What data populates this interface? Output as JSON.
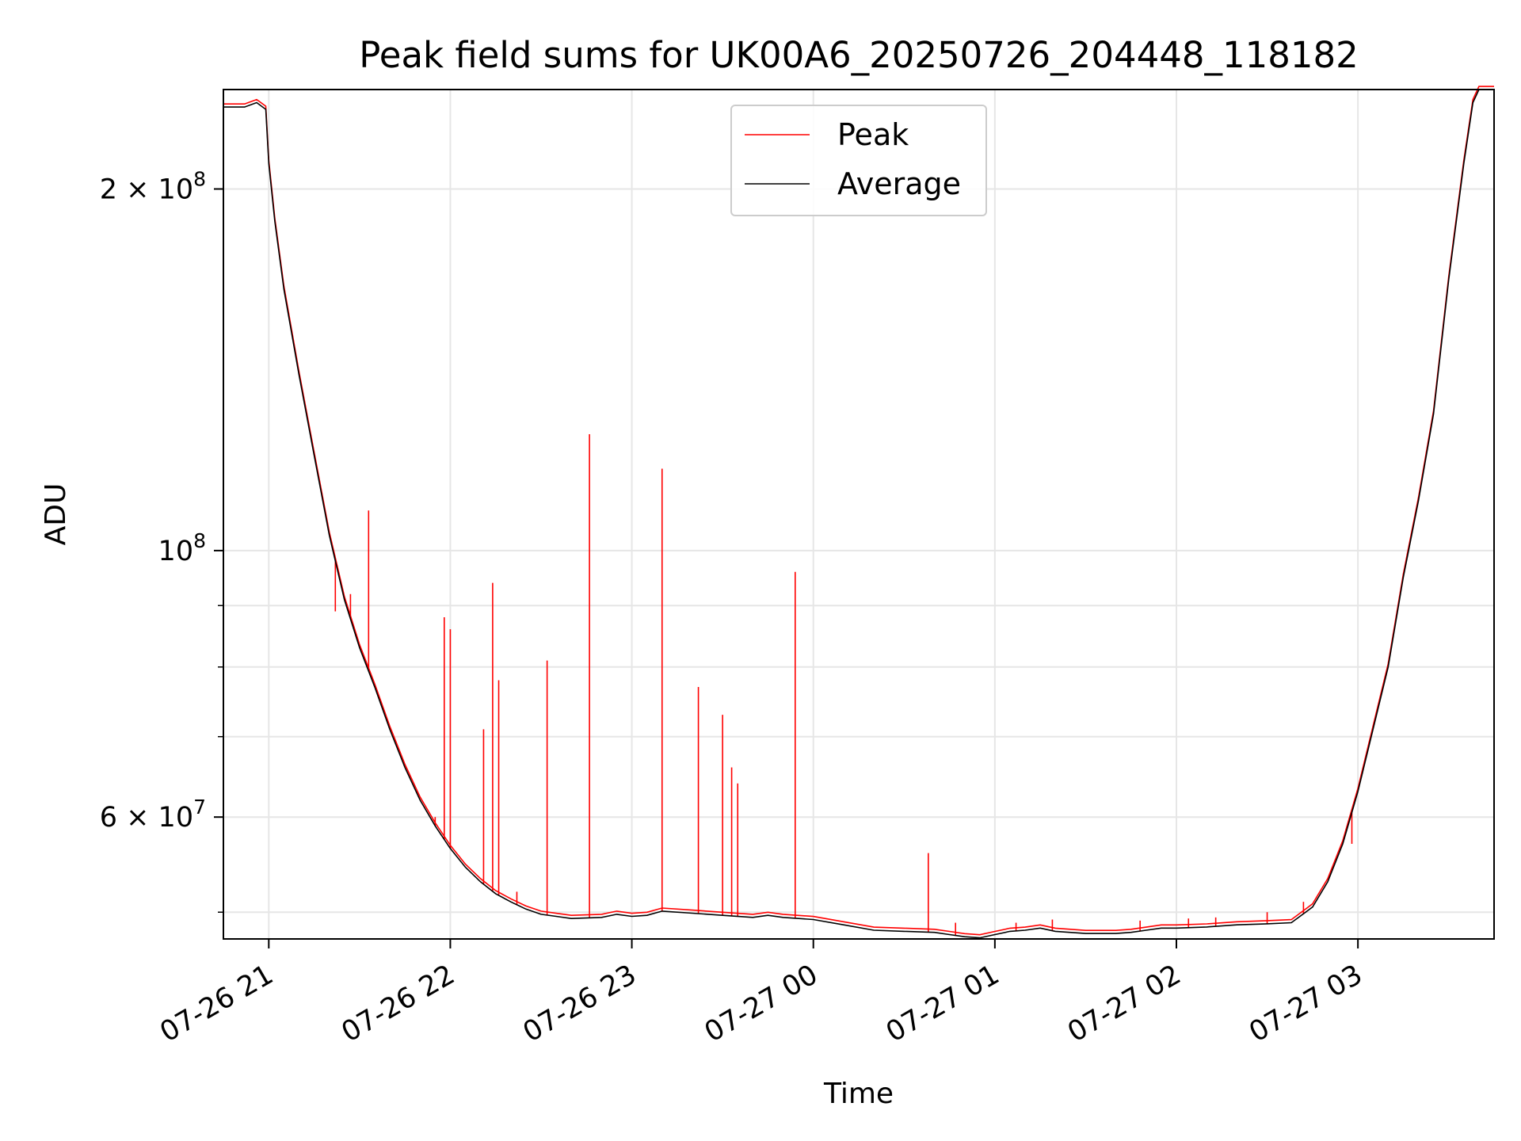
{
  "chart_data": {
    "type": "line",
    "title": "Peak field sums for UK00A6_20250726_204448_118182",
    "xlabel": "Time",
    "ylabel": "ADU",
    "x_range": [
      "2025-07-26T20:45",
      "2025-07-27T03:45"
    ],
    "y_scale": "log",
    "ylim": [
      47500000,
      242000000
    ],
    "grid": true,
    "legend": {
      "placement": "top-center",
      "entries": [
        "Peak",
        "Average"
      ]
    },
    "x_ticks": [
      {
        "value": "2025-07-26T21:00",
        "label": "07-26 21"
      },
      {
        "value": "2025-07-26T22:00",
        "label": "07-26 22"
      },
      {
        "value": "2025-07-26T23:00",
        "label": "07-26 23"
      },
      {
        "value": "2025-07-27T00:00",
        "label": "07-27 00"
      },
      {
        "value": "2025-07-27T01:00",
        "label": "07-27 01"
      },
      {
        "value": "2025-07-27T02:00",
        "label": "07-27 02"
      },
      {
        "value": "2025-07-27T03:00",
        "label": "07-27 03"
      }
    ],
    "y_major_ticks": [
      {
        "value": 200000000,
        "mantissa": "2",
        "exponent": "8"
      },
      {
        "value": 100000000,
        "mantissa": "",
        "exponent": "8"
      },
      {
        "value": 60000000,
        "mantissa": "6",
        "exponent": "7"
      }
    ],
    "y_minor_gridlines": [
      50000000,
      70000000,
      80000000,
      90000000
    ],
    "series": [
      {
        "name": "Average",
        "color": "#000000",
        "points": [
          [
            "2025-07-26T20:45",
            234000000
          ],
          [
            "2025-07-26T20:52",
            234000000
          ],
          [
            "2025-07-26T20:56",
            236000000
          ],
          [
            "2025-07-26T20:59",
            233000000
          ],
          [
            "2025-07-26T21:00",
            210000000
          ],
          [
            "2025-07-26T21:02",
            188000000
          ],
          [
            "2025-07-26T21:05",
            165000000
          ],
          [
            "2025-07-26T21:10",
            140000000
          ],
          [
            "2025-07-26T21:15",
            120000000
          ],
          [
            "2025-07-26T21:20",
            103000000
          ],
          [
            "2025-07-26T21:25",
            91000000
          ],
          [
            "2025-07-26T21:30",
            83000000
          ],
          [
            "2025-07-26T21:35",
            77000000
          ],
          [
            "2025-07-26T21:40",
            71000000
          ],
          [
            "2025-07-26T21:45",
            66000000
          ],
          [
            "2025-07-26T21:50",
            62000000
          ],
          [
            "2025-07-26T21:55",
            59000000
          ],
          [
            "2025-07-26T22:00",
            56500000
          ],
          [
            "2025-07-26T22:05",
            54500000
          ],
          [
            "2025-07-26T22:10",
            53000000
          ],
          [
            "2025-07-26T22:15",
            51800000
          ],
          [
            "2025-07-26T22:20",
            51000000
          ],
          [
            "2025-07-26T22:25",
            50300000
          ],
          [
            "2025-07-26T22:30",
            49800000
          ],
          [
            "2025-07-26T22:35",
            49600000
          ],
          [
            "2025-07-26T22:40",
            49400000
          ],
          [
            "2025-07-26T22:50",
            49500000
          ],
          [
            "2025-07-26T22:55",
            49800000
          ],
          [
            "2025-07-26T23:00",
            49600000
          ],
          [
            "2025-07-26T23:05",
            49700000
          ],
          [
            "2025-07-26T23:10",
            50100000
          ],
          [
            "2025-07-26T23:20",
            49900000
          ],
          [
            "2025-07-26T23:30",
            49700000
          ],
          [
            "2025-07-26T23:40",
            49500000
          ],
          [
            "2025-07-26T23:45",
            49700000
          ],
          [
            "2025-07-26T23:50",
            49500000
          ],
          [
            "2025-07-27T00:00",
            49300000
          ],
          [
            "2025-07-27T00:10",
            48800000
          ],
          [
            "2025-07-27T00:20",
            48300000
          ],
          [
            "2025-07-27T00:30",
            48200000
          ],
          [
            "2025-07-27T00:40",
            48100000
          ],
          [
            "2025-07-27T00:45",
            47900000
          ],
          [
            "2025-07-27T00:50",
            47700000
          ],
          [
            "2025-07-27T00:55",
            47600000
          ],
          [
            "2025-07-27T01:00",
            47900000
          ],
          [
            "2025-07-27T01:05",
            48200000
          ],
          [
            "2025-07-27T01:10",
            48300000
          ],
          [
            "2025-07-27T01:15",
            48500000
          ],
          [
            "2025-07-27T01:20",
            48200000
          ],
          [
            "2025-07-27T01:30",
            48000000
          ],
          [
            "2025-07-27T01:40",
            48000000
          ],
          [
            "2025-07-27T01:45",
            48100000
          ],
          [
            "2025-07-27T01:50",
            48300000
          ],
          [
            "2025-07-27T01:55",
            48500000
          ],
          [
            "2025-07-27T02:00",
            48500000
          ],
          [
            "2025-07-27T02:10",
            48600000
          ],
          [
            "2025-07-27T02:20",
            48800000
          ],
          [
            "2025-07-27T02:30",
            48900000
          ],
          [
            "2025-07-27T02:38",
            49000000
          ],
          [
            "2025-07-27T02:45",
            50500000
          ],
          [
            "2025-07-27T02:50",
            53000000
          ],
          [
            "2025-07-27T02:55",
            57000000
          ],
          [
            "2025-07-27T03:00",
            63000000
          ],
          [
            "2025-07-27T03:05",
            71000000
          ],
          [
            "2025-07-27T03:10",
            80000000
          ],
          [
            "2025-07-27T03:15",
            95000000
          ],
          [
            "2025-07-27T03:20",
            110000000
          ],
          [
            "2025-07-27T03:25",
            130000000
          ],
          [
            "2025-07-27T03:30",
            168000000
          ],
          [
            "2025-07-27T03:35",
            210000000
          ],
          [
            "2025-07-27T03:38",
            236000000
          ],
          [
            "2025-07-27T03:40",
            242000000
          ],
          [
            "2025-07-27T03:45",
            242000000
          ]
        ]
      },
      {
        "name": "Peak",
        "color": "#ff0000",
        "spikes": [
          [
            "2025-07-26T21:22",
            89000000
          ],
          [
            "2025-07-26T21:27",
            92000000
          ],
          [
            "2025-07-26T21:33",
            108000000
          ],
          [
            "2025-07-26T21:55",
            60000000
          ],
          [
            "2025-07-26T21:58",
            88000000
          ],
          [
            "2025-07-26T22:00",
            86000000
          ],
          [
            "2025-07-26T22:11",
            71000000
          ],
          [
            "2025-07-26T22:14",
            94000000
          ],
          [
            "2025-07-26T22:16",
            78000000
          ],
          [
            "2025-07-26T22:22",
            52000000
          ],
          [
            "2025-07-26T22:32",
            81000000
          ],
          [
            "2025-07-26T22:46",
            125000000
          ],
          [
            "2025-07-26T23:10",
            117000000
          ],
          [
            "2025-07-26T23:22",
            77000000
          ],
          [
            "2025-07-26T23:30",
            73000000
          ],
          [
            "2025-07-26T23:33",
            66000000
          ],
          [
            "2025-07-26T23:35",
            64000000
          ],
          [
            "2025-07-26T23:54",
            96000000
          ],
          [
            "2025-07-27T00:38",
            56000000
          ],
          [
            "2025-07-27T00:47",
            49000000
          ],
          [
            "2025-07-27T01:07",
            49000000
          ],
          [
            "2025-07-27T01:19",
            49300000
          ],
          [
            "2025-07-27T01:48",
            49200000
          ],
          [
            "2025-07-27T02:04",
            49400000
          ],
          [
            "2025-07-27T02:13",
            49500000
          ],
          [
            "2025-07-27T02:30",
            50000000
          ],
          [
            "2025-07-27T02:42",
            51000000
          ],
          [
            "2025-07-27T02:58",
            57000000
          ]
        ]
      }
    ]
  }
}
